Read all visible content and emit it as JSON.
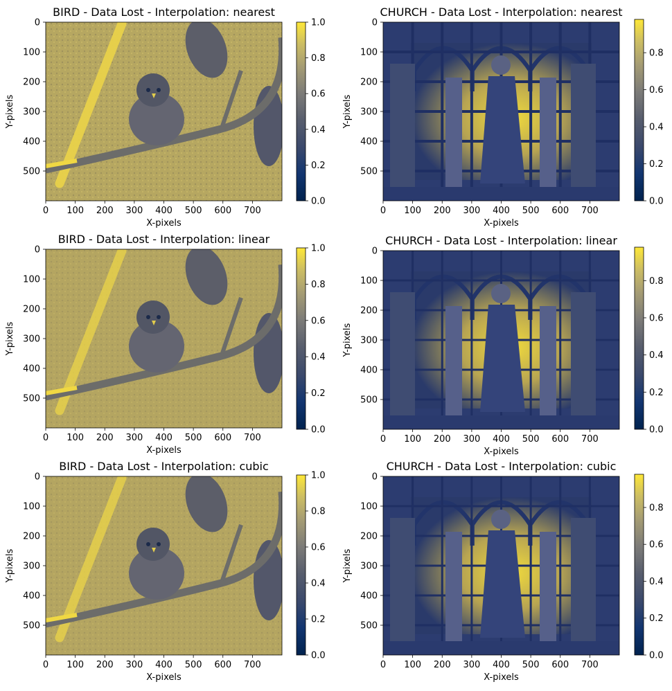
{
  "chart_data": [
    {
      "type": "heatmap",
      "title": "BIRD - Data Lost - Interpolation: nearest",
      "xlabel": "X-pixels",
      "ylabel": "Y-pixels",
      "xlim": [
        0,
        800
      ],
      "ylim": [
        600,
        0
      ],
      "xticks": [
        "0",
        "100",
        "200",
        "300",
        "400",
        "500",
        "600",
        "700"
      ],
      "yticks": [
        "0",
        "100",
        "200",
        "300",
        "400",
        "500"
      ],
      "colormap": "cividis",
      "colorbar": {
        "range": [
          0.0,
          1.0
        ],
        "ticks": [
          "0.0",
          "0.2",
          "0.4",
          "0.6",
          "0.8",
          "1.0"
        ]
      }
    },
    {
      "type": "heatmap",
      "title": "CHURCH - Data Lost - Interpolation: nearest",
      "xlabel": "X-pixels",
      "ylabel": "Y-pixels",
      "xlim": [
        0,
        800
      ],
      "ylim": [
        600,
        0
      ],
      "xticks": [
        "0",
        "100",
        "200",
        "300",
        "400",
        "500",
        "600",
        "700"
      ],
      "yticks": [
        "0",
        "100",
        "200",
        "300",
        "400",
        "500"
      ],
      "colormap": "cividis",
      "colorbar": {
        "range": [
          0.0,
          0.98
        ],
        "ticks": [
          "0.0",
          "0.2",
          "0.4",
          "0.6",
          "0.8"
        ]
      }
    },
    {
      "type": "heatmap",
      "title": "BIRD - Data Lost - Interpolation: linear",
      "xlabel": "X-pixels",
      "ylabel": "Y-pixels",
      "xlim": [
        0,
        800
      ],
      "ylim": [
        600,
        0
      ],
      "xticks": [
        "0",
        "100",
        "200",
        "300",
        "400",
        "500",
        "600",
        "700"
      ],
      "yticks": [
        "0",
        "100",
        "200",
        "300",
        "400",
        "500"
      ],
      "colormap": "cividis",
      "colorbar": {
        "range": [
          0.0,
          1.0
        ],
        "ticks": [
          "0.0",
          "0.2",
          "0.4",
          "0.6",
          "0.8",
          "1.0"
        ]
      }
    },
    {
      "type": "heatmap",
      "title": "CHURCH - Data Lost - Interpolation: linear",
      "xlabel": "X-pixels",
      "ylabel": "Y-pixels",
      "xlim": [
        0,
        800
      ],
      "ylim": [
        600,
        0
      ],
      "xticks": [
        "0",
        "100",
        "200",
        "300",
        "400",
        "500",
        "600",
        "700"
      ],
      "yticks": [
        "0",
        "100",
        "200",
        "300",
        "400",
        "500"
      ],
      "colormap": "cividis",
      "colorbar": {
        "range": [
          0.0,
          0.98
        ],
        "ticks": [
          "0.0",
          "0.2",
          "0.4",
          "0.6",
          "0.8"
        ]
      }
    },
    {
      "type": "heatmap",
      "title": "BIRD - Data Lost - Interpolation: cubic",
      "xlabel": "X-pixels",
      "ylabel": "Y-pixels",
      "xlim": [
        0,
        800
      ],
      "ylim": [
        600,
        0
      ],
      "xticks": [
        "0",
        "100",
        "200",
        "300",
        "400",
        "500",
        "600",
        "700"
      ],
      "yticks": [
        "0",
        "100",
        "200",
        "300",
        "400",
        "500"
      ],
      "colormap": "cividis",
      "colorbar": {
        "range": [
          0.0,
          1.0
        ],
        "ticks": [
          "0.0",
          "0.2",
          "0.4",
          "0.6",
          "0.8",
          "1.0"
        ]
      }
    },
    {
      "type": "heatmap",
      "title": "CHURCH - Data Lost - Interpolation: cubic",
      "xlabel": "X-pixels",
      "ylabel": "Y-pixels",
      "xlim": [
        0,
        800
      ],
      "ylim": [
        600,
        0
      ],
      "xticks": [
        "0",
        "100",
        "200",
        "300",
        "400",
        "500",
        "600",
        "700"
      ],
      "yticks": [
        "0",
        "100",
        "200",
        "300",
        "400",
        "500"
      ],
      "colormap": "cividis",
      "colorbar": {
        "range": [
          0.0,
          0.98
        ],
        "ticks": [
          "0.0",
          "0.2",
          "0.4",
          "0.6",
          "0.8"
        ]
      }
    }
  ],
  "colors": {
    "cividis_low": "#00224e",
    "cividis_mid": "#7c7b78",
    "cividis_high": "#fee838",
    "bird_background": "#b3a460",
    "church_background": "#3a4a78"
  }
}
